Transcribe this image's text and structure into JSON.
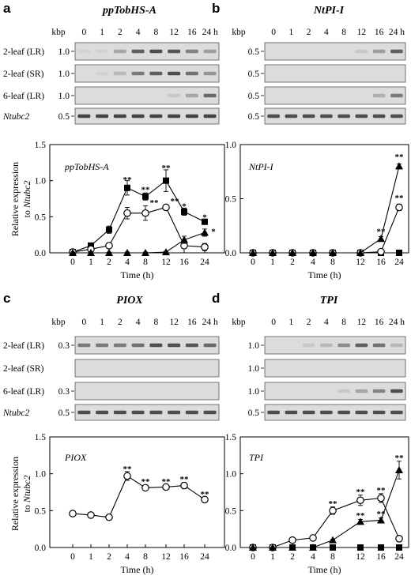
{
  "colors": {
    "background": "#ffffff",
    "ink": "#000000",
    "gel": "#dcdcdc",
    "band": "#2a2a2a"
  },
  "series_marker_shapes": [
    "filled-square",
    "open-circle",
    "filled-triangle"
  ],
  "panels": [
    {
      "label": "a",
      "title": "ppTobHS-A",
      "gel": {
        "kbp_label": "kbp",
        "lanes": [
          "0",
          "1",
          "2",
          "4",
          "8",
          "12",
          "16",
          "24 h"
        ],
        "rows": [
          {
            "name": "2-leaf (LR)",
            "size": "1.0",
            "italic": false,
            "bands": [
              0.05,
              0.05,
              0.3,
              0.7,
              0.8,
              0.75,
              0.5,
              0.35
            ]
          },
          {
            "name": "2-leaf (SR)",
            "size": "1.0",
            "italic": false,
            "bands": [
              0.0,
              0.05,
              0.2,
              0.55,
              0.7,
              0.8,
              0.6,
              0.4
            ]
          },
          {
            "name": "6-leaf (LR)",
            "size": "1.0",
            "italic": false,
            "bands": [
              0.0,
              0.0,
              0.0,
              0.0,
              0.0,
              0.1,
              0.3,
              0.65
            ]
          },
          {
            "name": "Ntubc2",
            "size": "0.5",
            "italic": true,
            "bands": [
              0.85,
              0.85,
              0.85,
              0.85,
              0.85,
              0.85,
              0.85,
              0.85
            ]
          }
        ]
      },
      "chart_data": {
        "type": "line",
        "inset_label": "ppTobHS-A",
        "x": [
          0,
          1,
          2,
          4,
          8,
          12,
          16,
          24
        ],
        "xticks": [
          "0",
          "1",
          "2",
          "4",
          "8",
          "12",
          "16",
          "24"
        ],
        "xlabel": "Time (h)",
        "ylabel": "Relative expression to Ntubc2",
        "ylim": [
          0,
          1.5
        ],
        "yticks": [
          "0.0",
          "0.5",
          "1.0",
          "1.5"
        ],
        "series": [
          {
            "values": [
              0.01,
              0.1,
              0.32,
              0.9,
              0.78,
              1.0,
              0.57,
              0.43
            ],
            "errors": [
              0.02,
              0.03,
              0.05,
              0.1,
              0.05,
              0.15,
              0.05,
              0.03
            ]
          },
          {
            "values": [
              0.01,
              0.05,
              0.1,
              0.55,
              0.55,
              0.63,
              0.1,
              0.08
            ],
            "errors": [
              0.02,
              0.02,
              0.03,
              0.08,
              0.1,
              0.02,
              0.03,
              0.05
            ]
          },
          {
            "values": [
              0.0,
              0.0,
              0.0,
              0.0,
              0.0,
              0.01,
              0.18,
              0.28
            ],
            "errors": [
              0.01,
              0.01,
              0.01,
              0.01,
              0.01,
              0.01,
              0.05,
              0.05
            ]
          }
        ],
        "annotations": [
          {
            "x": 4,
            "y": 1.02,
            "text": "**"
          },
          {
            "x": 8,
            "y": 0.88,
            "text": "**"
          },
          {
            "x": 12,
            "y": 1.18,
            "text": "**"
          },
          {
            "x": 16,
            "y": 0.65,
            "text": "*"
          },
          {
            "x": 24,
            "y": 0.5,
            "text": "*"
          },
          {
            "x": 8,
            "y": 0.7,
            "text": "**"
          },
          {
            "x": 12,
            "y": 0.72,
            "text": "**"
          },
          {
            "x": 24,
            "y": 0.3,
            "text": "*"
          }
        ]
      }
    },
    {
      "label": "b",
      "title": "NtPI-I",
      "gel": {
        "kbp_label": "kbp",
        "lanes": [
          "0",
          "1",
          "2",
          "4",
          "8",
          "12",
          "16",
          "24 h"
        ],
        "rows": [
          {
            "name": "",
            "size": "0.5",
            "italic": false,
            "bands": [
              0.0,
              0.0,
              0.0,
              0.0,
              0.0,
              0.1,
              0.35,
              0.7
            ]
          },
          {
            "name": "",
            "size": "0.5",
            "italic": false,
            "bands": [
              0,
              0,
              0,
              0,
              0,
              0,
              0,
              0
            ]
          },
          {
            "name": "",
            "size": "0.5",
            "italic": false,
            "bands": [
              0.0,
              0.0,
              0.0,
              0.0,
              0.0,
              0.0,
              0.25,
              0.55
            ]
          },
          {
            "name": "",
            "size": "0.5",
            "italic": false,
            "bands": [
              0.8,
              0.8,
              0.8,
              0.8,
              0.8,
              0.8,
              0.8,
              0.8
            ]
          }
        ]
      },
      "chart_data": {
        "type": "line",
        "inset_label": "NtPI-I",
        "x": [
          0,
          1,
          2,
          4,
          8,
          12,
          16,
          24
        ],
        "xticks": [
          "0",
          "1",
          "2",
          "4",
          "8",
          "12",
          "16",
          "24"
        ],
        "xlabel": "Time (h)",
        "ylabel": "",
        "ylim": [
          0,
          1.0
        ],
        "yticks": [
          "0.0",
          "0.5",
          "1.0"
        ],
        "series": [
          {
            "values": [
              0,
              0,
              0,
              0,
              0,
              0,
              0.0,
              0.0
            ],
            "errors": [
              0,
              0,
              0,
              0,
              0,
              0,
              0,
              0
            ]
          },
          {
            "values": [
              0,
              0,
              0,
              0,
              0,
              0,
              0.01,
              0.42
            ],
            "errors": [
              0,
              0,
              0,
              0,
              0,
              0,
              0.01,
              0.03
            ]
          },
          {
            "values": [
              0,
              0,
              0,
              0,
              0,
              0,
              0.13,
              0.8
            ],
            "errors": [
              0,
              0,
              0,
              0,
              0,
              0,
              0.02,
              0.02
            ]
          }
        ],
        "annotations": [
          {
            "x": 16,
            "y": 0.2,
            "text": "**"
          },
          {
            "x": 24,
            "y": 0.51,
            "text": "**"
          },
          {
            "x": 24,
            "y": 0.89,
            "text": "**"
          }
        ]
      }
    },
    {
      "label": "c",
      "title": "PIOX",
      "gel": {
        "kbp_label": "kbp",
        "lanes": [
          "0",
          "1",
          "2",
          "4",
          "8",
          "12",
          "16",
          "24 h"
        ],
        "rows": [
          {
            "name": "2-leaf (LR)",
            "size": "0.3",
            "italic": false,
            "bands": [
              0.55,
              0.55,
              0.55,
              0.6,
              0.8,
              0.8,
              0.75,
              0.65
            ]
          },
          {
            "name": "2-leaf (SR)",
            "size": "",
            "italic": false,
            "bands": [
              0,
              0,
              0,
              0,
              0,
              0,
              0,
              0
            ]
          },
          {
            "name": "6-leaf (LR)",
            "size": "0.3",
            "italic": false,
            "bands": [
              0,
              0,
              0,
              0,
              0,
              0,
              0,
              0
            ]
          },
          {
            "name": "Ntubc2",
            "size": "0.5",
            "italic": true,
            "bands": [
              0.8,
              0.8,
              0.8,
              0.8,
              0.8,
              0.8,
              0.8,
              0.8
            ]
          }
        ]
      },
      "chart_data": {
        "type": "line",
        "inset_label": "PIOX",
        "x": [
          0,
          1,
          2,
          4,
          8,
          12,
          16,
          24
        ],
        "xticks": [
          "0",
          "1",
          "2",
          "4",
          "8",
          "12",
          "16",
          "24"
        ],
        "xlabel": "Time (h)",
        "ylabel": "Relative expression to Ntubc2",
        "ylim": [
          0,
          1.5
        ],
        "yticks": [
          "0.0",
          "0.5",
          "1.0",
          "1.5"
        ],
        "series": [
          {
            "values": [
              0.46,
              0.44,
              0.41,
              0.97,
              0.81,
              0.82,
              0.84,
              0.65
            ],
            "errors": [
              0.01,
              0.01,
              0.01,
              0.06,
              0.02,
              0.03,
              0.04,
              0.03
            ]
          }
        ],
        "annotations": [
          {
            "x": 4,
            "y": 1.07,
            "text": "**"
          },
          {
            "x": 8,
            "y": 0.9,
            "text": "**"
          },
          {
            "x": 12,
            "y": 0.9,
            "text": "**"
          },
          {
            "x": 16,
            "y": 0.93,
            "text": "**"
          },
          {
            "x": 24,
            "y": 0.73,
            "text": "**"
          }
        ]
      }
    },
    {
      "label": "d",
      "title": "TPI",
      "gel": {
        "kbp_label": "kbp",
        "lanes": [
          "0",
          "1",
          "2",
          "4",
          "8",
          "12",
          "16",
          "24 h"
        ],
        "rows": [
          {
            "name": "",
            "size": "1.0",
            "italic": false,
            "bands": [
              0.0,
              0.0,
              0.1,
              0.2,
              0.45,
              0.7,
              0.6,
              0.2
            ]
          },
          {
            "name": "",
            "size": "1.0",
            "italic": false,
            "bands": [
              0,
              0,
              0,
              0,
              0,
              0,
              0,
              0
            ]
          },
          {
            "name": "",
            "size": "1.0",
            "italic": false,
            "bands": [
              0.0,
              0.0,
              0.0,
              0.0,
              0.1,
              0.3,
              0.5,
              0.8
            ]
          },
          {
            "name": "",
            "size": "0.5",
            "italic": false,
            "bands": [
              0.8,
              0.8,
              0.8,
              0.8,
              0.8,
              0.8,
              0.8,
              0.8
            ]
          }
        ]
      },
      "chart_data": {
        "type": "line",
        "inset_label": "TPI",
        "x": [
          0,
          1,
          2,
          4,
          8,
          12,
          16,
          24
        ],
        "xticks": [
          "0",
          "1",
          "2",
          "4",
          "8",
          "12",
          "16",
          "24"
        ],
        "xlabel": "Time (h)",
        "ylabel": "",
        "ylim": [
          0,
          1.5
        ],
        "yticks": [
          "0.0",
          "0.5",
          "1.0",
          "1.5"
        ],
        "series": [
          {
            "values": [
              0,
              0,
              0,
              0,
              0,
              0,
              0,
              0
            ],
            "errors": [
              0,
              0,
              0,
              0,
              0,
              0,
              0,
              0
            ]
          },
          {
            "values": [
              0,
              0,
              0.1,
              0.13,
              0.5,
              0.64,
              0.67,
              0.12
            ],
            "errors": [
              0,
              0,
              0.01,
              0.02,
              0.05,
              0.07,
              0.06,
              0.03
            ]
          },
          {
            "values": [
              0,
              0,
              0,
              0,
              0.1,
              0.35,
              0.37,
              1.05
            ],
            "errors": [
              0,
              0,
              0,
              0,
              0.01,
              0.03,
              0.03,
              0.12
            ]
          }
        ],
        "annotations": [
          {
            "x": 8,
            "y": 0.6,
            "text": "**"
          },
          {
            "x": 12,
            "y": 0.76,
            "text": "**"
          },
          {
            "x": 12,
            "y": 0.44,
            "text": "**"
          },
          {
            "x": 16,
            "y": 0.78,
            "text": "**"
          },
          {
            "x": 16,
            "y": 0.46,
            "text": "**"
          },
          {
            "x": 24,
            "y": 1.22,
            "text": "**"
          }
        ]
      }
    }
  ]
}
